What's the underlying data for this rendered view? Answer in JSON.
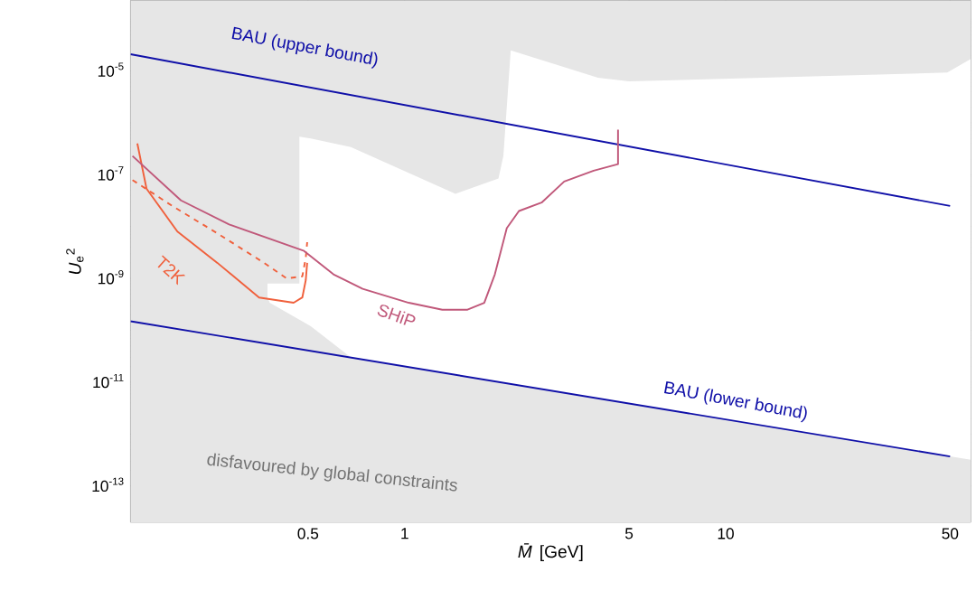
{
  "chart_data": {
    "type": "line",
    "xlabel": "*M̄* [GeV]",
    "ylabel": "*U*$_{e}$$^{2}$",
    "log": "xy",
    "xlim": [
      0.14,
      58
    ],
    "ylim": [
      2e-14,
      0.00023
    ],
    "xticks": [
      0.5,
      1,
      5,
      10,
      50
    ],
    "yticks": [
      {
        "value": 1e-13,
        "label": "10$^{-13}$"
      },
      {
        "value": 1e-12,
        "label": null
      },
      {
        "value": 1e-11,
        "label": "10$^{-11}$"
      },
      {
        "value": 1e-10,
        "label": null
      },
      {
        "value": 1e-09,
        "label": "10$^{-9}$"
      },
      {
        "value": 1e-08,
        "label": null
      },
      {
        "value": 1e-07,
        "label": "10$^{-7}$"
      },
      {
        "value": 1e-06,
        "label": null
      },
      {
        "value": 1e-05,
        "label": "10$^{-5}$"
      },
      {
        "value": 0.0001,
        "label": null
      }
    ],
    "marker": "none",
    "annotations": [
      "disfavoured by global constraints"
    ],
    "bands": [
      {
        "axis": "x",
        "from": 0.14,
        "to": 58,
        "color": "#e6e6e6"
      }
    ],
    "series": [
      {
        "type": "area",
        "color": "#ffffff",
        "x": [
          0.374,
          0.38,
          0.47,
          0.47,
          0.51,
          0.68,
          1.44,
          1.96,
          2.03,
          2.14,
          4.0,
          5.0,
          49,
          58
        ],
        "values": [
          8e-10,
          8e-10,
          8e-10,
          5.4e-07,
          5e-07,
          3.4e-07,
          4.3e-08,
          8.5e-08,
          2.3e-07,
          2.5e-05,
          7.4e-06,
          6.3e-06,
          9.3e-06,
          1.7e-05
        ]
      },
      {
        "type": "area",
        "color": "#e6e6e6",
        "x": [
          0.374,
          0.38,
          0.47,
          0.51,
          0.68,
          1.44,
          1.96,
          2.03,
          2.14,
          4.0,
          5.0,
          49,
          58
        ],
        "values": [
          4.3e-10,
          3.4e-10,
          1.6e-10,
          1.2e-10,
          3e-11,
          1.4e-11,
          1e-11,
          9.8e-12,
          9.2e-12,
          4.9e-12,
          3.9e-12,
          3.8e-13,
          3.2e-13
        ]
      },
      {
        "name": "BAU (upper bound)",
        "color": "#1010a8",
        "x": [
          0.14,
          50
        ],
        "values": [
          2.1e-05,
          2.5e-08
        ]
      },
      {
        "name": "BAU (lower bound)",
        "color": "#1010a8",
        "x": [
          0.14,
          50
        ],
        "values": [
          1.5e-10,
          3.7e-13
        ]
      },
      {
        "name": "T2K",
        "color": "#f0603c",
        "x": [
          0.147,
          0.157,
          0.196,
          0.261,
          0.352,
          0.451,
          0.48,
          0.492,
          0.497
        ],
        "values": [
          4e-07,
          5.4e-08,
          8e-09,
          2e-09,
          4.3e-10,
          3.4e-10,
          4.3e-10,
          9.3e-10,
          2e-09
        ]
      },
      {
        "color": "#f0603c",
        "line_style": "dashed",
        "x": [
          0.142,
          0.189,
          0.261,
          0.365,
          0.429,
          0.48,
          0.492,
          0.497
        ],
        "values": [
          7.9e-08,
          2.5e-08,
          7.4e-09,
          2e-09,
          1e-09,
          1.1e-09,
          2.5e-09,
          5e-09
        ]
      },
      {
        "name": "SHiP",
        "color": "#c0587a",
        "x": [
          0.142,
          0.201,
          0.284,
          0.486,
          0.6,
          0.74,
          1.03,
          1.31,
          1.57,
          1.77,
          1.91,
          2.08,
          2.27,
          2.67,
          3.14,
          3.88,
          4.62,
          4.62
        ],
        "values": [
          2.3e-07,
          3.2e-08,
          1.1e-08,
          3.4e-09,
          1.2e-09,
          6.3e-10,
          3.4e-10,
          2.5e-10,
          2.5e-10,
          3.4e-10,
          1.2e-09,
          9.3e-09,
          2e-08,
          2.9e-08,
          7.4e-08,
          1.2e-07,
          1.6e-07,
          7.4e-07
        ]
      }
    ]
  }
}
